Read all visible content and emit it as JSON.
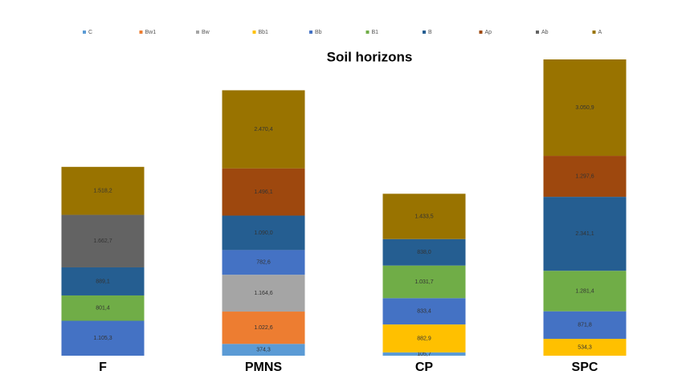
{
  "chart_data": {
    "type": "bar",
    "stacked": true,
    "title": "Soil horizons",
    "categories": [
      "F",
      "PMNS",
      "CP",
      "SPC"
    ],
    "series": [
      {
        "name": "C",
        "color": "#5b9bd5",
        "values": [
          null,
          374.3,
          105.7,
          null
        ],
        "value_labels": [
          null,
          "374,3",
          "105,7",
          null
        ]
      },
      {
        "name": "Bw1",
        "color": "#ed7d31",
        "values": [
          null,
          1022.6,
          null,
          null
        ],
        "value_labels": [
          null,
          "1.022,6",
          null,
          null
        ]
      },
      {
        "name": "Bw",
        "color": "#a5a5a5",
        "values": [
          null,
          1164.6,
          null,
          null
        ],
        "value_labels": [
          null,
          "1.164,6",
          null,
          null
        ]
      },
      {
        "name": "Bb1",
        "color": "#ffc000",
        "values": [
          null,
          null,
          882.9,
          534.3
        ],
        "value_labels": [
          null,
          null,
          "882,9",
          "534,3"
        ]
      },
      {
        "name": "Bb",
        "color": "#4472c4",
        "values": [
          1105.3,
          782.6,
          833.4,
          871.8
        ],
        "value_labels": [
          "1.105,3",
          "782,6",
          "833,4",
          "871,8"
        ]
      },
      {
        "name": "B1",
        "color": "#70ad47",
        "values": [
          801.4,
          null,
          1031.7,
          1281.4
        ],
        "value_labels": [
          "801,4",
          null,
          "1.031,7",
          "1.281,4"
        ]
      },
      {
        "name": "B",
        "color": "#255e91",
        "values": [
          889.1,
          1090.0,
          838.0,
          2341.1
        ],
        "value_labels": [
          "889,1",
          "1.090,0",
          "838,0",
          "2.341,1"
        ]
      },
      {
        "name": "Ap",
        "color": "#9e480e",
        "values": [
          null,
          1496.1,
          null,
          1297.6
        ],
        "value_labels": [
          null,
          "1.496,1",
          null,
          "1.297,6"
        ]
      },
      {
        "name": "Ab",
        "color": "#636363",
        "values": [
          1662.7,
          null,
          null,
          null
        ],
        "value_labels": [
          "1.662,7",
          null,
          null,
          null
        ]
      },
      {
        "name": "A",
        "color": "#997300",
        "values": [
          1518.2,
          2470.4,
          1433.5,
          3050.9
        ],
        "value_labels": [
          "1.518,2",
          "2.470,4",
          "1.433,5",
          "3.050,9"
        ]
      }
    ]
  }
}
